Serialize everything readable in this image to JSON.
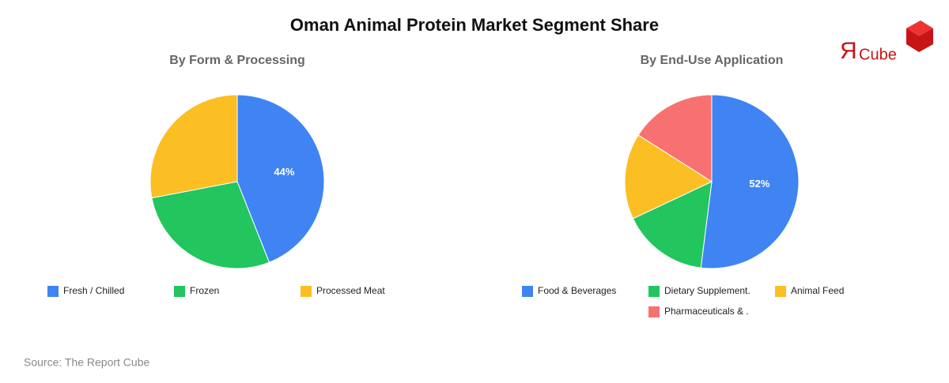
{
  "title": "Oman Animal Protein Market Segment Share",
  "logo": {
    "mark": "Я",
    "text": "Cube"
  },
  "source": "Source: The Report Cube",
  "chart_data": [
    {
      "type": "pie",
      "title": "By Form & Processing",
      "categories": [
        "Fresh / Chilled",
        "Frozen",
        "Processed Meat"
      ],
      "values": [
        44,
        28,
        28
      ],
      "value_labels": [
        "44%",
        null,
        null
      ],
      "colors": [
        "#3f84f2",
        "#22c55e",
        "#fbbf24"
      ]
    },
    {
      "type": "pie",
      "title": "By End-Use Application",
      "categories": [
        "Food & Beverages",
        "Dietary Supplement.",
        "Animal Feed",
        "Pharmaceuticals & ."
      ],
      "values": [
        52,
        16,
        16,
        16
      ],
      "value_labels": [
        "52%",
        null,
        null,
        null
      ],
      "colors": [
        "#3f84f2",
        "#22c55e",
        "#fbbf24",
        "#f87171"
      ]
    }
  ]
}
